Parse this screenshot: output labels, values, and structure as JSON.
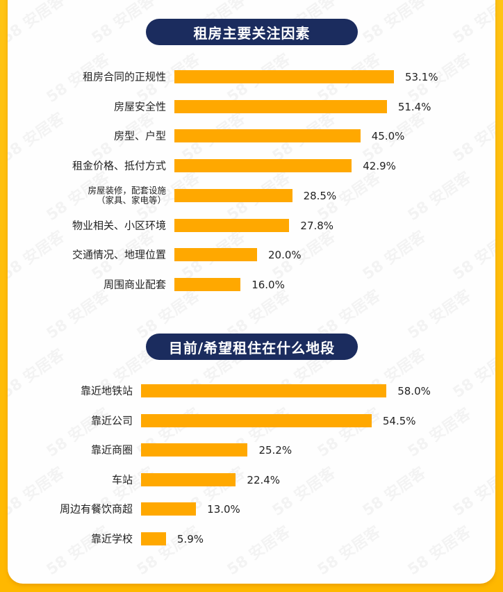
{
  "colors": {
    "background": "#FFBE0B",
    "card": "#FEFEFE",
    "pill": "#1B2C5E",
    "bar": "#FFA800",
    "text": "#222222"
  },
  "watermark": "58 安居客",
  "chart_data": [
    {
      "type": "bar",
      "orientation": "horizontal",
      "title": "租房主要关注因素",
      "categories": [
        "租房合同的正规性",
        "房屋安全性",
        "房型、户型",
        "租金价格、抵付方式",
        "房屋装修，配套设施（家具、家电等）",
        "物业相关、小区环境",
        "交通情况、地理位置",
        "周围商业配套"
      ],
      "values": [
        53.1,
        51.4,
        45.0,
        42.9,
        28.5,
        27.8,
        20.0,
        16.0
      ],
      "labels": [
        "53.1%",
        "51.4%",
        "45.0%",
        "42.9%",
        "28.5%",
        "27.8%",
        "20.0%",
        "16.0%"
      ],
      "unit": "%",
      "grid": false,
      "legend": null
    },
    {
      "type": "bar",
      "orientation": "horizontal",
      "title": "目前/希望租住在什么地段",
      "categories": [
        "靠近地铁站",
        "靠近公司",
        "靠近商圈",
        "车站",
        "周边有餐饮商超",
        "靠近学校"
      ],
      "values": [
        58.0,
        54.5,
        25.2,
        22.4,
        13.0,
        5.9
      ],
      "labels": [
        "58.0%",
        "54.5%",
        "25.2%",
        "22.4%",
        "13.0%",
        "5.9%"
      ],
      "unit": "%",
      "grid": false,
      "legend": null
    }
  ],
  "section1": {
    "title": "租房主要关注因素",
    "rows": [
      {
        "label": "租房合同的正规性",
        "value": "53.1%"
      },
      {
        "label": "房屋安全性",
        "value": "51.4%"
      },
      {
        "label": "房型、户型",
        "value": "45.0%"
      },
      {
        "label": "租金价格、抵付方式",
        "value": "42.9%"
      },
      {
        "label": "房屋装修，配套设施",
        "label2": "（家具、家电等）",
        "value": "28.5%"
      },
      {
        "label": "物业相关、小区环境",
        "value": "27.8%"
      },
      {
        "label": "交通情况、地理位置",
        "value": "20.0%"
      },
      {
        "label": "周围商业配套",
        "value": "16.0%"
      }
    ]
  },
  "section2": {
    "title": "目前/希望租住在什么地段",
    "rows": [
      {
        "label": "靠近地铁站",
        "value": "58.0%"
      },
      {
        "label": "靠近公司",
        "value": "54.5%"
      },
      {
        "label": "靠近商圈",
        "value": "25.2%"
      },
      {
        "label": "车站",
        "value": "22.4%"
      },
      {
        "label": "周边有餐饮商超",
        "value": "13.0%"
      },
      {
        "label": "靠近学校",
        "value": "5.9%"
      }
    ]
  }
}
